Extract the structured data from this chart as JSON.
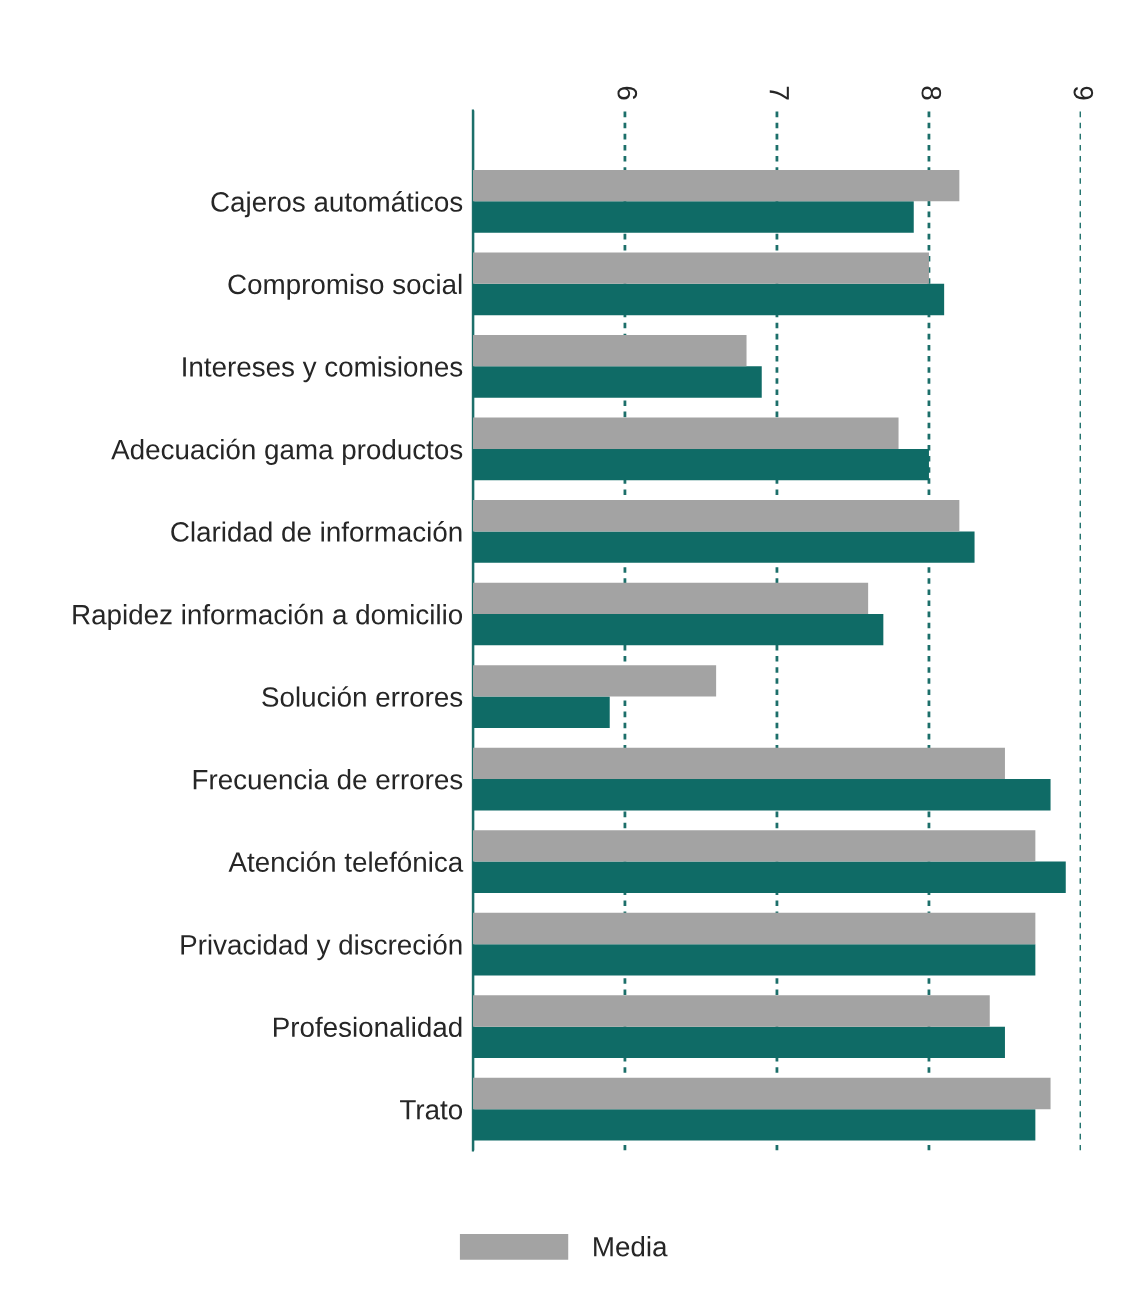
{
  "chart_data": {
    "type": "bar",
    "orientation": "horizontal",
    "categories": [
      "Cajeros automáticos",
      "Compromiso social",
      "Intereses y comisiones",
      "Adecuación gama productos",
      "Claridad de información",
      "Rapidez información a domicilio",
      "Solución errores",
      "Frecuencia de errores",
      "Atención telefónica",
      "Privacidad y discreción",
      "Profesionalidad",
      "Trato"
    ],
    "series": [
      {
        "color": "#0f6b66",
        "values": [
          7.9,
          8.1,
          6.9,
          8.0,
          8.3,
          7.7,
          5.9,
          8.8,
          8.9,
          8.7,
          8.5,
          8.7
        ]
      },
      {
        "name": "Media",
        "color": "#a3a3a3",
        "values": [
          8.2,
          8.0,
          6.8,
          7.8,
          8.2,
          7.6,
          6.6,
          8.5,
          8.7,
          8.7,
          8.4,
          8.8
        ]
      }
    ],
    "xlim": [
      5,
      9
    ],
    "xticks": [
      {
        "value": 5,
        "label": null
      },
      6,
      7,
      8,
      9
    ],
    "grid": "x",
    "legend": "bottom"
  }
}
